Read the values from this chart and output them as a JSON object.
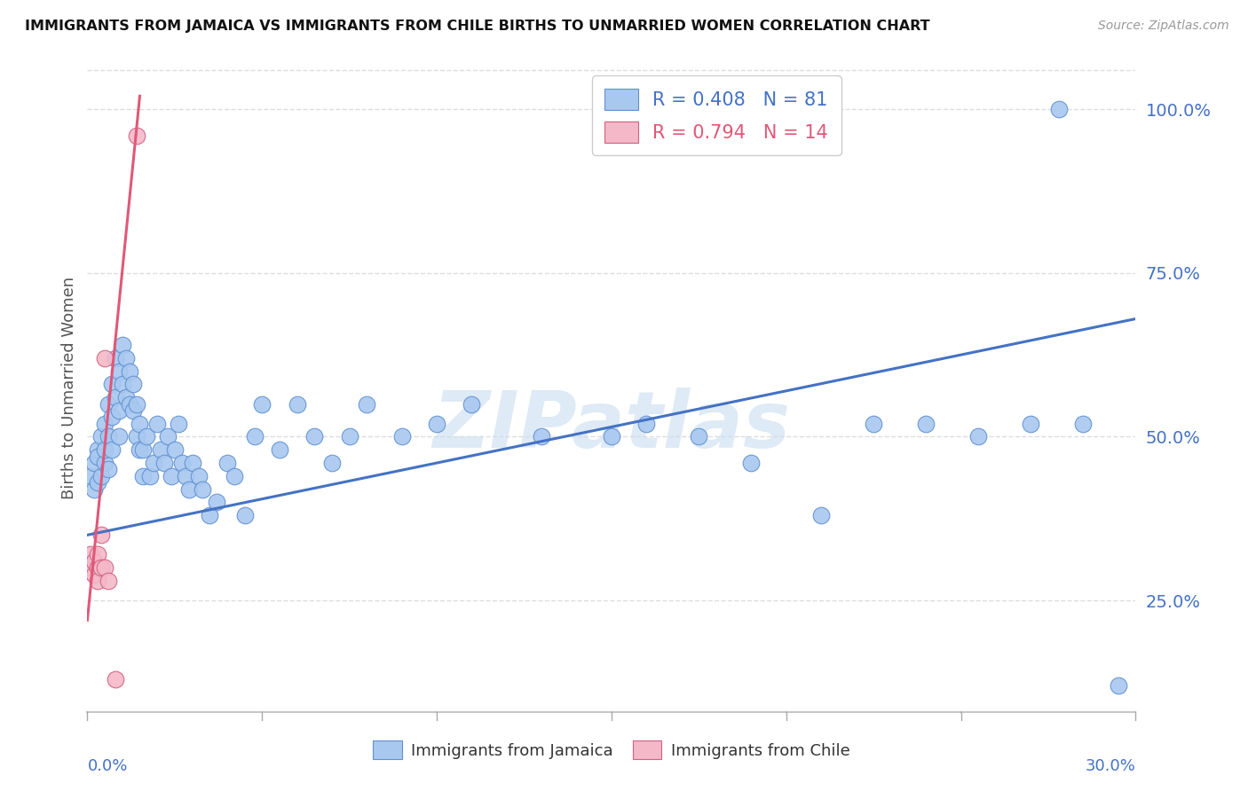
{
  "title": "IMMIGRANTS FROM JAMAICA VS IMMIGRANTS FROM CHILE BIRTHS TO UNMARRIED WOMEN CORRELATION CHART",
  "source": "Source: ZipAtlas.com",
  "ylabel": "Births to Unmarried Women",
  "yticks": [
    0.25,
    0.5,
    0.75,
    1.0
  ],
  "ytick_labels": [
    "25.0%",
    "50.0%",
    "75.0%",
    "100.0%"
  ],
  "xmin": 0.0,
  "xmax": 0.3,
  "ymin": 0.08,
  "ymax": 1.07,
  "jamaica_R": 0.408,
  "jamaica_N": 81,
  "chile_R": 0.794,
  "chile_N": 14,
  "jamaica_color": "#A8C8F0",
  "chile_color": "#F4B8C8",
  "jamaica_edge_color": "#6090D0",
  "chile_edge_color": "#D06080",
  "jamaica_line_color": "#4472C4",
  "chile_line_color": "#E05878",
  "background_color": "#FFFFFF",
  "grid_color": "#DDDDDD",
  "title_color": "#111111",
  "right_axis_color": "#4472C4",
  "watermark_color": "#C8DCEF",
  "jamaica_x": [
    0.001,
    0.002,
    0.002,
    0.003,
    0.003,
    0.003,
    0.004,
    0.004,
    0.005,
    0.005,
    0.005,
    0.006,
    0.006,
    0.006,
    0.007,
    0.007,
    0.007,
    0.008,
    0.008,
    0.009,
    0.009,
    0.009,
    0.01,
    0.01,
    0.011,
    0.011,
    0.012,
    0.012,
    0.013,
    0.013,
    0.014,
    0.014,
    0.015,
    0.015,
    0.016,
    0.016,
    0.017,
    0.018,
    0.019,
    0.02,
    0.021,
    0.022,
    0.023,
    0.024,
    0.025,
    0.026,
    0.027,
    0.028,
    0.029,
    0.03,
    0.032,
    0.033,
    0.035,
    0.037,
    0.04,
    0.042,
    0.045,
    0.048,
    0.05,
    0.055,
    0.06,
    0.065,
    0.07,
    0.075,
    0.08,
    0.09,
    0.1,
    0.11,
    0.13,
    0.15,
    0.16,
    0.175,
    0.19,
    0.21,
    0.225,
    0.24,
    0.255,
    0.27,
    0.278,
    0.285,
    0.295
  ],
  "jamaica_y": [
    0.44,
    0.42,
    0.46,
    0.48,
    0.43,
    0.47,
    0.5,
    0.44,
    0.52,
    0.46,
    0.48,
    0.55,
    0.5,
    0.45,
    0.58,
    0.53,
    0.48,
    0.62,
    0.56,
    0.6,
    0.54,
    0.5,
    0.64,
    0.58,
    0.62,
    0.56,
    0.55,
    0.6,
    0.58,
    0.54,
    0.5,
    0.55,
    0.48,
    0.52,
    0.44,
    0.48,
    0.5,
    0.44,
    0.46,
    0.52,
    0.48,
    0.46,
    0.5,
    0.44,
    0.48,
    0.52,
    0.46,
    0.44,
    0.42,
    0.46,
    0.44,
    0.42,
    0.38,
    0.4,
    0.46,
    0.44,
    0.38,
    0.5,
    0.55,
    0.48,
    0.55,
    0.5,
    0.46,
    0.5,
    0.55,
    0.5,
    0.52,
    0.55,
    0.5,
    0.5,
    0.52,
    0.5,
    0.46,
    0.38,
    0.52,
    0.52,
    0.5,
    0.52,
    1.0,
    0.52,
    0.12
  ],
  "chile_x": [
    0.001,
    0.001,
    0.002,
    0.002,
    0.003,
    0.003,
    0.003,
    0.004,
    0.004,
    0.005,
    0.005,
    0.006,
    0.008,
    0.014
  ],
  "chile_y": [
    0.3,
    0.32,
    0.29,
    0.31,
    0.3,
    0.28,
    0.32,
    0.3,
    0.35,
    0.3,
    0.62,
    0.28,
    0.13,
    0.96
  ],
  "jamaica_line_x": [
    0.0,
    0.3
  ],
  "jamaica_line_y": [
    0.35,
    0.68
  ],
  "chile_line_x": [
    0.0,
    0.015
  ],
  "chile_line_y": [
    0.22,
    1.02
  ]
}
